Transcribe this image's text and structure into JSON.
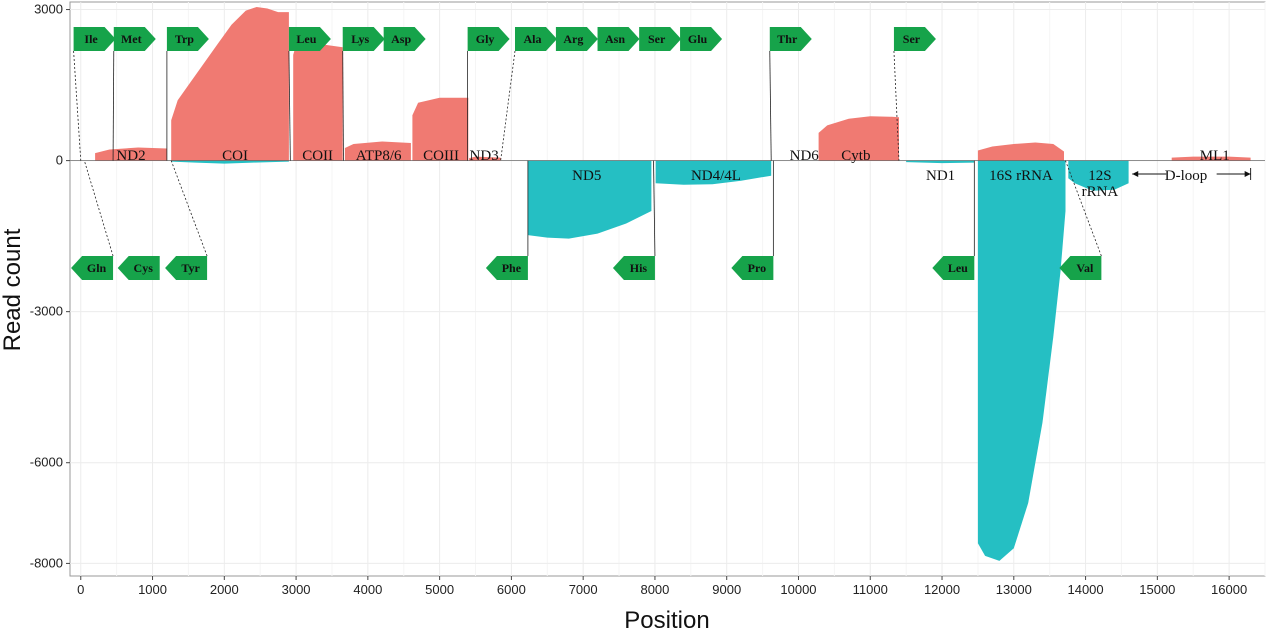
{
  "colors": {
    "plus": "#f07a72",
    "minus": "#25bfc3",
    "trna": "#16a34a",
    "grid": "#ececec",
    "frame": "#9a9a9a"
  },
  "chart_data": {
    "type": "area",
    "title": "",
    "xlabel": "Position",
    "ylabel": "Read count",
    "xlim": [
      -150,
      16500
    ],
    "ylim": [
      -8250,
      3150
    ],
    "xticks": [
      0,
      1000,
      2000,
      3000,
      4000,
      5000,
      6000,
      7000,
      8000,
      9000,
      10000,
      11000,
      12000,
      13000,
      14000,
      15000,
      16000
    ],
    "yticks": [
      3000,
      0,
      -3000,
      -6000,
      -8000
    ],
    "grid": true,
    "legend": "none",
    "series": [
      {
        "name": "ND2 (+)",
        "strand": "plus",
        "x": [
          200,
          400,
          800,
          1200
        ],
        "y": [
          150,
          220,
          260,
          240
        ]
      },
      {
        "name": "COI (+)",
        "strand": "plus",
        "x": [
          1260,
          1350,
          1500,
          1700,
          1900,
          2100,
          2300,
          2450,
          2600,
          2750,
          2900
        ],
        "y": [
          800,
          1200,
          1500,
          1900,
          2300,
          2700,
          2980,
          3050,
          3020,
          2950,
          2950
        ]
      },
      {
        "name": "COI (-)",
        "strand": "minus",
        "x": [
          1260,
          1600,
          2000,
          2400,
          2900
        ],
        "y": [
          -20,
          -40,
          -60,
          -40,
          -20
        ]
      },
      {
        "name": "COII (+)",
        "strand": "plus",
        "x": [
          2960,
          3000,
          3400,
          3650
        ],
        "y": [
          2100,
          2300,
          2300,
          2250
        ]
      },
      {
        "name": "ATP8/6 (+)",
        "strand": "plus",
        "x": [
          3680,
          3800,
          4200,
          4600
        ],
        "y": [
          250,
          330,
          380,
          350
        ]
      },
      {
        "name": "COIII (+)",
        "strand": "plus",
        "x": [
          4620,
          4700,
          5000,
          5400
        ],
        "y": [
          900,
          1150,
          1250,
          1250
        ]
      },
      {
        "name": "ND3 (+)",
        "strand": "plus",
        "x": [
          5410,
          5500,
          5850
        ],
        "y": [
          50,
          80,
          60
        ]
      },
      {
        "name": "ND5 (-)",
        "strand": "minus",
        "x": [
          6230,
          6500,
          6800,
          7200,
          7600,
          7950
        ],
        "y": [
          -1480,
          -1530,
          -1550,
          -1450,
          -1250,
          -1000
        ]
      },
      {
        "name": "ND4/4L (-)",
        "strand": "minus",
        "x": [
          8010,
          8400,
          8800,
          9200,
          9620
        ],
        "y": [
          -450,
          -480,
          -470,
          -400,
          -300
        ]
      },
      {
        "name": "Cytb (+)",
        "strand": "plus",
        "x": [
          10280,
          10400,
          10700,
          11000,
          11300,
          11400
        ],
        "y": [
          550,
          700,
          830,
          880,
          870,
          860
        ]
      },
      {
        "name": "ND1 (-)",
        "strand": "minus",
        "x": [
          11500,
          12000,
          12450
        ],
        "y": [
          -30,
          -50,
          -40
        ]
      },
      {
        "name": "16S rRNA (+)",
        "strand": "plus",
        "x": [
          12500,
          12700,
          13000,
          13300,
          13550,
          13700
        ],
        "y": [
          200,
          280,
          330,
          360,
          330,
          180
        ]
      },
      {
        "name": "16S rRNA (-)",
        "strand": "minus",
        "x": [
          12500,
          12600,
          12800,
          13000,
          13200,
          13400,
          13550,
          13650,
          13720
        ],
        "y": [
          -7600,
          -7850,
          -7950,
          -7700,
          -6800,
          -5200,
          -3500,
          -2200,
          -1000
        ]
      },
      {
        "name": "12S rRNA (-)",
        "strand": "minus",
        "x": [
          13760,
          13850,
          14100,
          14400,
          14600
        ],
        "y": [
          -350,
          -450,
          -600,
          -580,
          -450
        ]
      },
      {
        "name": "ML1 (+)",
        "strand": "plus",
        "x": [
          15200,
          15500,
          16000,
          16300
        ],
        "y": [
          60,
          80,
          80,
          60
        ]
      }
    ],
    "gene_labels": [
      {
        "text": "ND2",
        "x": 700
      },
      {
        "text": "COI",
        "x": 2150
      },
      {
        "text": "COII",
        "x": 3300
      },
      {
        "text": "ATP8/6",
        "x": 4150
      },
      {
        "text": "COIII",
        "x": 5020
      },
      {
        "text": "ND3",
        "x": 5620
      },
      {
        "text": "ND5",
        "x": 7050
      },
      {
        "text": "ND4/4L",
        "x": 8850
      },
      {
        "text": "ND6",
        "x": 10080
      },
      {
        "text": "Cytb",
        "x": 10800
      },
      {
        "text": "ND1",
        "x": 11980
      },
      {
        "text": "16S rRNA",
        "x": 13100
      },
      {
        "text": "12S",
        "x": 14200
      },
      {
        "text": "rRNA",
        "x": 14200
      },
      {
        "text": "D-loop",
        "x": 15400
      },
      {
        "text": "ML1",
        "x": 15800
      }
    ],
    "trna_top": [
      {
        "text": "Ile",
        "x": -100,
        "pos": 0
      },
      {
        "text": "Met",
        "x": 460,
        "pos": 450
      },
      {
        "text": "Trp",
        "x": 1200,
        "pos": 1200
      },
      {
        "text": "Leu",
        "x": 2900,
        "pos": 2920
      },
      {
        "text": "Lys",
        "x": 3650,
        "pos": 3660
      },
      {
        "text": "Asp",
        "x": 4220
      },
      {
        "text": "Gly",
        "x": 5390,
        "pos": 5390
      },
      {
        "text": "Ala",
        "x": 6050,
        "pos": 5850
      },
      {
        "text": "Arg",
        "x": 6620
      },
      {
        "text": "Asn",
        "x": 7200
      },
      {
        "text": "Ser",
        "x": 7780
      },
      {
        "text": "Glu",
        "x": 8350
      },
      {
        "text": "Thr",
        "x": 9600,
        "pos": 9620
      },
      {
        "text": "Ser",
        "x": 11330,
        "pos": 11400
      }
    ],
    "trna_bottom": [
      {
        "text": "Gln",
        "x": 450,
        "pos": 50
      },
      {
        "text": "Cys",
        "x": 1100
      },
      {
        "text": "Tyr",
        "x": 1760,
        "pos": 1260
      },
      {
        "text": "Phe",
        "x": 6230,
        "pos": 6230
      },
      {
        "text": "His",
        "x": 8000,
        "pos": 7980
      },
      {
        "text": "Pro",
        "x": 9650,
        "pos": 9650
      },
      {
        "text": "Leu",
        "x": 12450,
        "pos": 12450
      },
      {
        "text": "Val",
        "x": 14220,
        "pos": 13720
      }
    ]
  }
}
